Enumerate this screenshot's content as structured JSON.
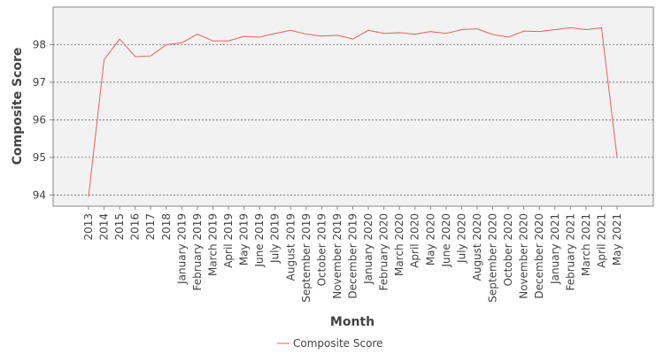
{
  "chart_data": {
    "type": "line",
    "x_label": "Month",
    "y_label": "Composite Score",
    "categories": [
      "2013",
      "2014",
      "2015",
      "2016",
      "2017",
      "2018",
      "January 2019",
      "February 2019",
      "March 2019",
      "April 2019",
      "May 2019",
      "June 2019",
      "July 2019",
      "August 2019",
      "September 2019",
      "October 2019",
      "November 2019",
      "December 2019",
      "January 2020",
      "February 2020",
      "March 2020",
      "April 2020",
      "May 2020",
      "June 2020",
      "July 2020",
      "August 2020",
      "September 2020",
      "October 2020",
      "November 2020",
      "December 2020",
      "January 2021",
      "February 2021",
      "March 2021",
      "April 2021",
      "May 2021"
    ],
    "series": [
      {
        "name": "Composite Score",
        "color": "#f25c5c",
        "values": [
          93.95,
          97.6,
          98.15,
          97.68,
          97.7,
          98.0,
          98.05,
          98.28,
          98.1,
          98.1,
          98.22,
          98.2,
          98.3,
          98.38,
          98.28,
          98.23,
          98.25,
          98.15,
          98.38,
          98.3,
          98.32,
          98.28,
          98.35,
          98.3,
          98.4,
          98.42,
          98.27,
          98.2,
          98.36,
          98.35,
          98.4,
          98.45,
          98.4,
          98.45,
          95.0
        ]
      }
    ],
    "ylim": [
      93.7,
      99.0
    ],
    "yticks": [
      94,
      95,
      96,
      97,
      98
    ],
    "grid": true,
    "legend": "bottom"
  }
}
